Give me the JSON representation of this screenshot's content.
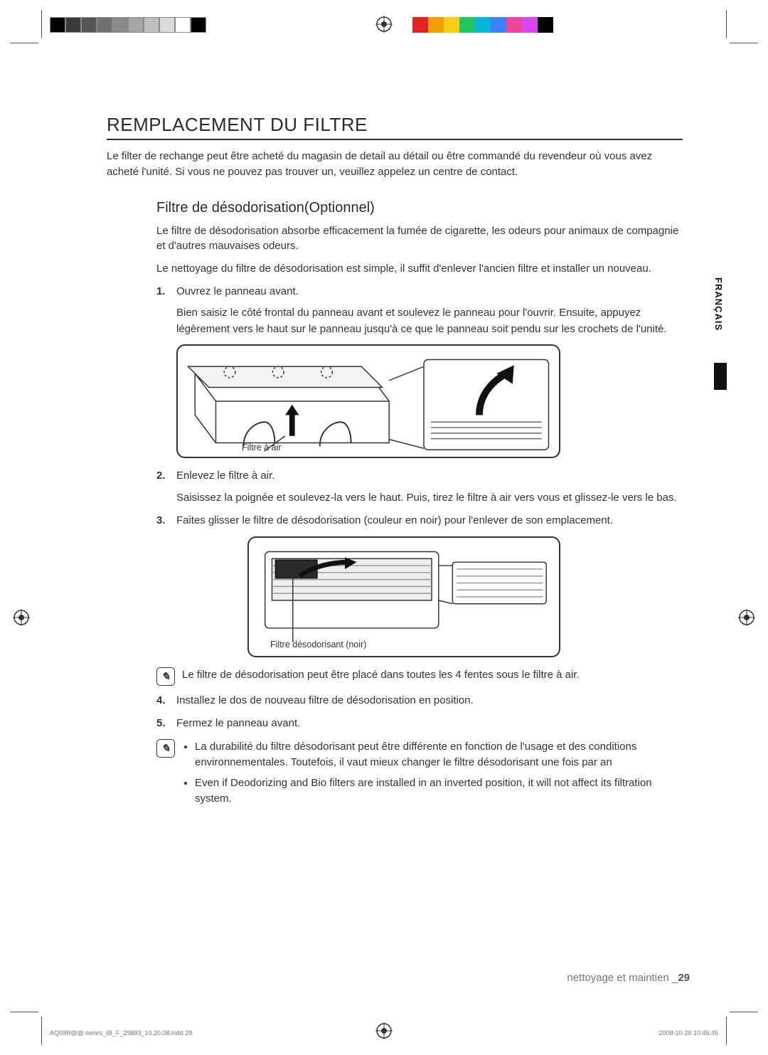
{
  "colorbars": {
    "left": [
      "#000000",
      "#3a3a3a",
      "#555555",
      "#707070",
      "#8a8a8a",
      "#a5a5a5",
      "#bfbfbf",
      "#dadada",
      "#ffffff",
      "#000000"
    ],
    "right": [
      "#e02424",
      "#f59e0b",
      "#facc15",
      "#22c55e",
      "#06b6d4",
      "#3b82f6",
      "#ec4899",
      "#d946ef",
      "#000000",
      "#ffffff"
    ]
  },
  "heading": "REMPLACEMENT DU FILTRE",
  "intro": "Le filter de rechange peut être acheté du magasin de detail au détail ou être commandé du revendeur où vous avez acheté l'unité. Si vous ne pouvez pas trouver un, veuillez appelez un centre de contact.",
  "subheading": "Filtre de désodorisation(Optionnel)",
  "sub_para1": "Le filtre de désodorisation absorbe efficacement la fumée de cigarette, les odeurs pour animaux de compagnie et d'autres mauvaises odeurs.",
  "sub_para2": "Le nettoyage du filtre de désodorisation est simple, il suffit d'enlever l'ancien filtre et installer un nouveau.",
  "steps": [
    {
      "num": "1.",
      "lead": "Ouvrez le panneau avant.",
      "body": "Bien saisiz le côté frontal du panneau avant et soulevez le panneau pour l'ouvrir. Ensuite, appuyez légèrement vers le haut sur le panneau jusqu'à ce que le panneau soit pendu sur les crochets de l'unité."
    },
    {
      "num": "2.",
      "lead": "Enlevez le filtre à air.",
      "body": "Saisissez la poignée et soulevez-la vers le haut. Puis, tirez le filtre à air vers vous et glissez-le vers le bas."
    },
    {
      "num": "3.",
      "lead": "Faites glisser le filtre de désodorisation (couleur en noir) pour l'enlever de son emplacement."
    },
    {
      "num": "4.",
      "lead": "Installez le dos de nouveau filtre de désodorisation en position."
    },
    {
      "num": "5.",
      "lead": "Fermez le panneau avant."
    }
  ],
  "fig1_caption": "Filtre à air",
  "fig2_caption": "Filtre désodorisant (noir)",
  "note1": "Le filtre de désodorisation peut être placé dans toutes les 4 fentes sous le filtre à air.",
  "note2_items": [
    "La durabilité du filtre désodorisant peut être différente en fonction de l'usage et des conditions environnementales. Toutefois, il vaut mieux changer le filtre désodorisant une fois par an",
    "Even if Deodorizing and Bio filters are installed in an inverted position, it will not affect its filtration system."
  ],
  "lang_tab": "FRANÇAIS",
  "footer_section": "nettoyage et maintien _",
  "footer_page": "29",
  "imprint_left": "AQ09R@@ series_IB_F_29893_10.20.08.indd   29",
  "imprint_right": "2008-10-20   10:45:45"
}
